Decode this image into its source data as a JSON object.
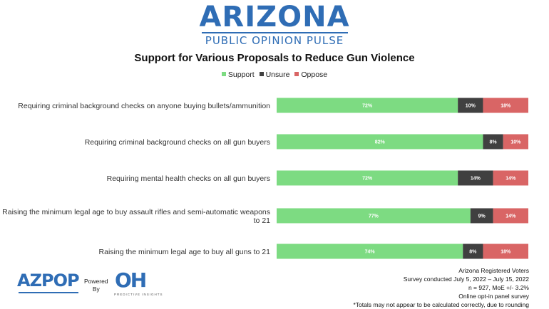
{
  "header": {
    "logo_title": "ARIZONA",
    "logo_subtitle": "PUBLIC OPINION PULSE"
  },
  "chart_data": {
    "type": "bar",
    "orientation": "horizontal",
    "stacked": true,
    "title": "Support for Various Proposals to Reduce Gun Violence",
    "categories": [
      "Requiring criminal background checks on anyone buying bullets/ammunition",
      "Requiring criminal background checks on all gun buyers",
      "Requiring mental health checks on all gun buyers",
      "Raising the minimum legal age to buy assault rifles and semi-automatic weapons to 21",
      "Raising the minimum legal age to buy all guns to 21"
    ],
    "series": [
      {
        "name": "Support",
        "color": "#7ddb82",
        "values": [
          72,
          82,
          72,
          77,
          74
        ],
        "labels": [
          "72%",
          "82%",
          "72%",
          "77%",
          "74%"
        ]
      },
      {
        "name": "Unsure",
        "color": "#404040",
        "values": [
          10,
          8,
          14,
          9,
          8
        ],
        "labels": [
          "10%",
          "8%",
          "14%",
          "9%",
          "8%"
        ]
      },
      {
        "name": "Oppose",
        "color": "#d96565",
        "values": [
          18,
          10,
          14,
          14,
          18
        ],
        "labels": [
          "18%",
          "10%",
          "14%",
          "14%",
          "18%"
        ]
      }
    ],
    "xlim": [
      0,
      100
    ],
    "legend_position": "top-center",
    "grid": false
  },
  "footer": {
    "azpop_logo": "AZPOP",
    "powered_line1": "Powered",
    "powered_line2": "By",
    "oh_logo": "OH",
    "oh_subtitle": "PREDICTIVE INSIGHTS",
    "notes": [
      "Arizona Registered Voters",
      "Survey conducted July 5, 2022 – July 15, 2022",
      "n = 927, MoE +/- 3.2%",
      "Online opt-in panel survey",
      "*Totals may not appear to be calculated correctly, due to rounding"
    ]
  }
}
